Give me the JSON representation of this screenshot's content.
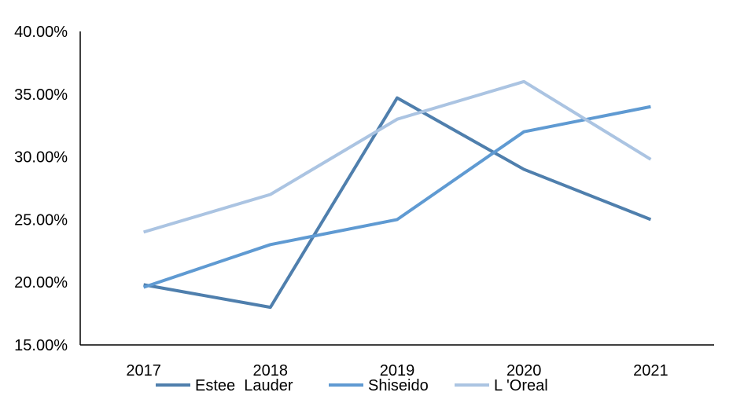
{
  "chart_data": {
    "type": "line",
    "title": "",
    "xlabel": "",
    "ylabel": "",
    "categories": [
      "2017",
      "2018",
      "2019",
      "2020",
      "2021"
    ],
    "ylim": [
      15,
      40
    ],
    "y_ticks": [
      {
        "value": 15,
        "label": "15.00%"
      },
      {
        "value": 20,
        "label": "20.00%"
      },
      {
        "value": 25,
        "label": "25.00%"
      },
      {
        "value": 30,
        "label": "30.00%"
      },
      {
        "value": 35,
        "label": "35.00%"
      },
      {
        "value": 40,
        "label": "40.00%"
      }
    ],
    "grid": false,
    "legend_position": "bottom",
    "series": [
      {
        "name": "Estee  Lauder",
        "color": "#4f7fad",
        "values": [
          19.8,
          18.0,
          34.7,
          29.0,
          25.0
        ]
      },
      {
        "name": "Shiseido",
        "color": "#5f9ad2",
        "values": [
          19.6,
          23.0,
          25.0,
          32.0,
          34.0
        ]
      },
      {
        "name": "L 'Oreal",
        "color": "#abc4e2",
        "values": [
          24.0,
          27.0,
          33.0,
          36.0,
          29.8
        ]
      }
    ]
  }
}
